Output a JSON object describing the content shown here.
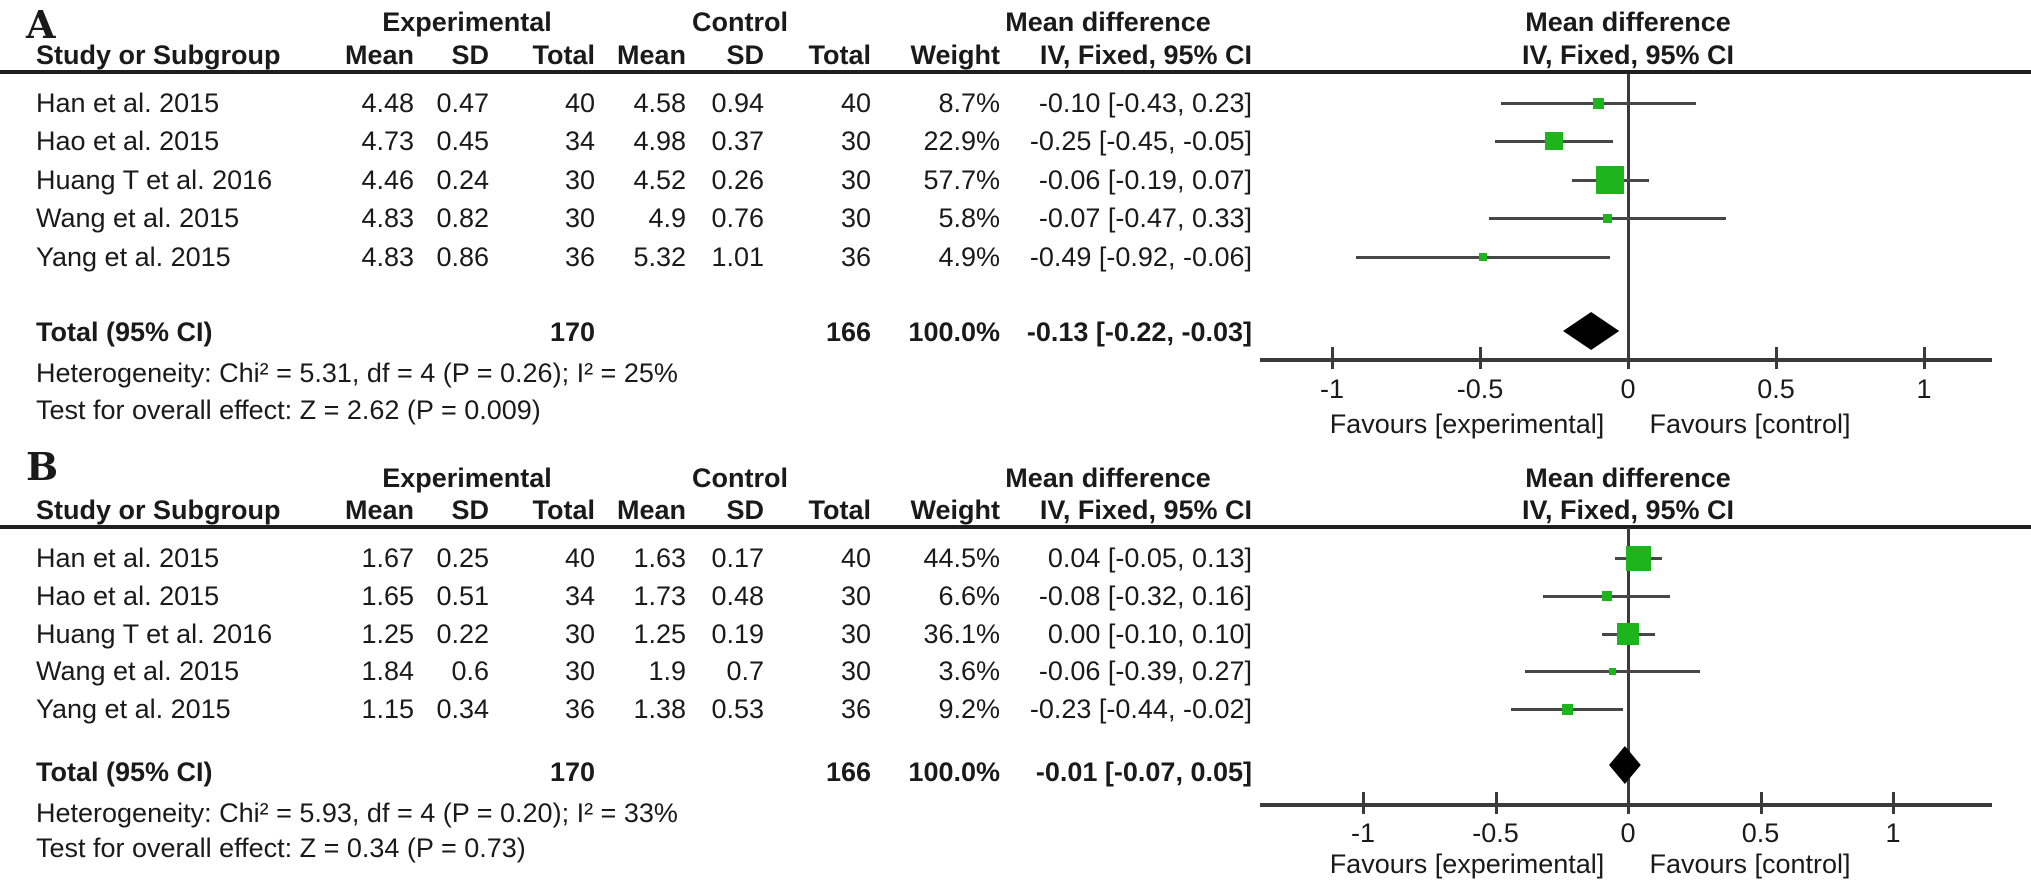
{
  "colors": {
    "marker_green": "#1eb41e",
    "line_gray": "#474747",
    "diamond_black": "#000000",
    "text": "#1a1a1a"
  },
  "chart_data": [
    {
      "type": "forest",
      "panel_label": "A",
      "group_headers": {
        "experimental": "Experimental",
        "control": "Control",
        "mean_difference_left": "Mean difference",
        "mean_difference_right": "Mean difference"
      },
      "column_headers": {
        "study": "Study or Subgroup",
        "mean_exp": "Mean",
        "sd_exp": "SD",
        "total_exp": "Total",
        "mean_ctrl": "Mean",
        "sd_ctrl": "SD",
        "total_ctrl": "Total",
        "weight": "Weight",
        "effect_left": "IV, Fixed, 95% CI",
        "effect_right": "IV, Fixed, 95% CI"
      },
      "studies": [
        {
          "study": "Han et al. 2015",
          "exp_mean": "4.48",
          "exp_sd": "0.47",
          "exp_total": "40",
          "ctrl_mean": "4.58",
          "ctrl_sd": "0.94",
          "ctrl_total": "40",
          "weight": "8.7%",
          "weight_pct": 8.7,
          "ci_text": "-0.10 [-0.43, 0.23]",
          "est": -0.1,
          "lo": -0.43,
          "hi": 0.23
        },
        {
          "study": "Hao et al. 2015",
          "exp_mean": "4.73",
          "exp_sd": "0.45",
          "exp_total": "34",
          "ctrl_mean": "4.98",
          "ctrl_sd": "0.37",
          "ctrl_total": "30",
          "weight": "22.9%",
          "weight_pct": 22.9,
          "ci_text": "-0.25 [-0.45, -0.05]",
          "est": -0.25,
          "lo": -0.45,
          "hi": -0.05
        },
        {
          "study": "Huang T et al. 2016",
          "exp_mean": "4.46",
          "exp_sd": "0.24",
          "exp_total": "30",
          "ctrl_mean": "4.52",
          "ctrl_sd": "0.26",
          "ctrl_total": "30",
          "weight": "57.7%",
          "weight_pct": 57.7,
          "ci_text": "-0.06 [-0.19, 0.07]",
          "est": -0.06,
          "lo": -0.19,
          "hi": 0.07
        },
        {
          "study": "Wang et al. 2015",
          "exp_mean": "4.83",
          "exp_sd": "0.82",
          "exp_total": "30",
          "ctrl_mean": "4.9",
          "ctrl_sd": "0.76",
          "ctrl_total": "30",
          "weight": "5.8%",
          "weight_pct": 5.8,
          "ci_text": "-0.07 [-0.47, 0.33]",
          "est": -0.07,
          "lo": -0.47,
          "hi": 0.33
        },
        {
          "study": "Yang et al. 2015",
          "exp_mean": "4.83",
          "exp_sd": "0.86",
          "exp_total": "36",
          "ctrl_mean": "5.32",
          "ctrl_sd": "1.01",
          "ctrl_total": "36",
          "weight": "4.9%",
          "weight_pct": 4.9,
          "ci_text": "-0.49 [-0.92, -0.06]",
          "est": -0.49,
          "lo": -0.92,
          "hi": -0.06
        }
      ],
      "total": {
        "label": "Total (95% CI)",
        "exp_total": "170",
        "ctrl_total": "166",
        "weight": "100.0%",
        "ci_text": "-0.13 [-0.22, -0.03]",
        "est": -0.13,
        "lo": -0.22,
        "hi": -0.03
      },
      "heterogeneity": "Heterogeneity: Chi² = 5.31, df = 4 (P = 0.26); I² = 25%",
      "overall_effect": "Test for overall effect: Z = 2.62 (P = 0.009)",
      "axis": {
        "ticks": [
          -1,
          -0.5,
          0,
          0.5,
          1
        ],
        "tick_labels": [
          "-1",
          "-0.5",
          "0",
          "0.5",
          "1"
        ],
        "xmin": -1.24,
        "xmax": 1.23
      },
      "favours_left": "Favours [experimental]",
      "favours_right": "Favours [control]"
    },
    {
      "type": "forest",
      "panel_label": "B",
      "group_headers": {
        "experimental": "Experimental",
        "control": "Control",
        "mean_difference_left": "Mean difference",
        "mean_difference_right": "Mean difference"
      },
      "column_headers": {
        "study": "Study or Subgroup",
        "mean_exp": "Mean",
        "sd_exp": "SD",
        "total_exp": "Total",
        "mean_ctrl": "Mean",
        "sd_ctrl": "SD",
        "total_ctrl": "Total",
        "weight": "Weight",
        "effect_left": "IV, Fixed, 95% CI",
        "effect_right": "IV, Fixed, 95% CI"
      },
      "studies": [
        {
          "study": "Han et al. 2015",
          "exp_mean": "1.67",
          "exp_sd": "0.25",
          "exp_total": "40",
          "ctrl_mean": "1.63",
          "ctrl_sd": "0.17",
          "ctrl_total": "40",
          "weight": "44.5%",
          "weight_pct": 44.5,
          "ci_text": "0.04 [-0.05, 0.13]",
          "est": 0.04,
          "lo": -0.05,
          "hi": 0.13
        },
        {
          "study": "Hao et al. 2015",
          "exp_mean": "1.65",
          "exp_sd": "0.51",
          "exp_total": "34",
          "ctrl_mean": "1.73",
          "ctrl_sd": "0.48",
          "ctrl_total": "30",
          "weight": "6.6%",
          "weight_pct": 6.6,
          "ci_text": "-0.08 [-0.32, 0.16]",
          "est": -0.08,
          "lo": -0.32,
          "hi": 0.16
        },
        {
          "study": "Huang T et al. 2016",
          "exp_mean": "1.25",
          "exp_sd": "0.22",
          "exp_total": "30",
          "ctrl_mean": "1.25",
          "ctrl_sd": "0.19",
          "ctrl_total": "30",
          "weight": "36.1%",
          "weight_pct": 36.1,
          "ci_text": "0.00 [-0.10, 0.10]",
          "est": 0.0,
          "lo": -0.1,
          "hi": 0.1
        },
        {
          "study": "Wang et al. 2015",
          "exp_mean": "1.84",
          "exp_sd": "0.6",
          "exp_total": "30",
          "ctrl_mean": "1.9",
          "ctrl_sd": "0.7",
          "ctrl_total": "30",
          "weight": "3.6%",
          "weight_pct": 3.6,
          "ci_text": "-0.06 [-0.39, 0.27]",
          "est": -0.06,
          "lo": -0.39,
          "hi": 0.27
        },
        {
          "study": "Yang et al. 2015",
          "exp_mean": "1.15",
          "exp_sd": "0.34",
          "exp_total": "36",
          "ctrl_mean": "1.38",
          "ctrl_sd": "0.53",
          "ctrl_total": "36",
          "weight": "9.2%",
          "weight_pct": 9.2,
          "ci_text": "-0.23 [-0.44, -0.02]",
          "est": -0.23,
          "lo": -0.44,
          "hi": -0.02
        }
      ],
      "total": {
        "label": "Total (95% CI)",
        "exp_total": "170",
        "ctrl_total": "166",
        "weight": "100.0%",
        "ci_text": "-0.01 [-0.07, 0.05]",
        "est": -0.01,
        "lo": -0.07,
        "hi": 0.05
      },
      "heterogeneity": "Heterogeneity: Chi² = 5.93, df = 4 (P = 0.20); I² = 33%",
      "overall_effect": "Test for overall effect: Z = 0.34 (P = 0.73)",
      "axis": {
        "ticks": [
          -1,
          -0.5,
          0,
          0.5,
          1
        ],
        "tick_labels": [
          "-1",
          "-0.5",
          "0",
          "0.5",
          "1"
        ],
        "xmin": -1.39,
        "xmax": 1.37
      },
      "favours_left": "Favours [experimental]",
      "favours_right": "Favours [control]"
    }
  ]
}
